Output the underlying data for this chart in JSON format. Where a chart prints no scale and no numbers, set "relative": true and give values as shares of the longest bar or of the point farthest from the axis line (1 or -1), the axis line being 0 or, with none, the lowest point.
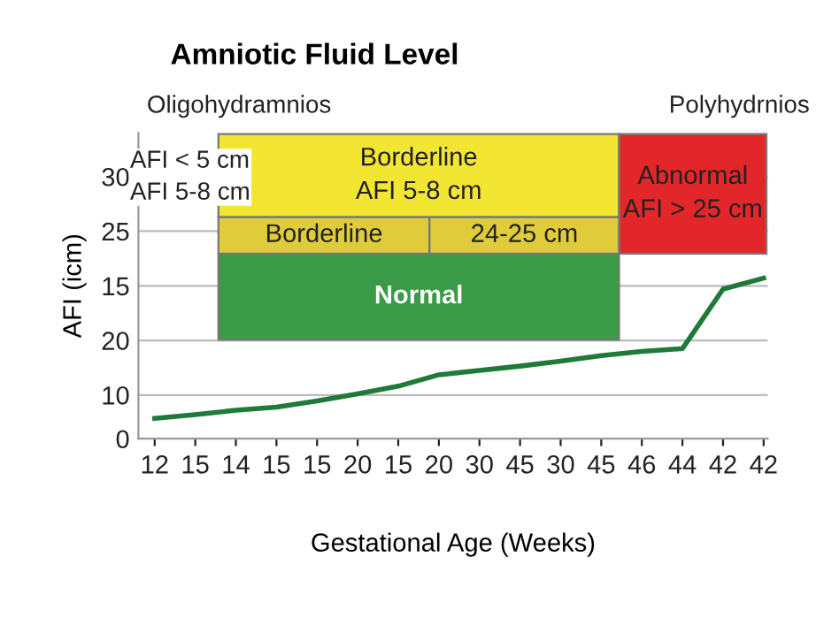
{
  "chart_data": {
    "type": "line",
    "title": "Amniotic Fluid Level",
    "xlabel": "Gestational Age (Weeks)",
    "ylabel": "AFI (icm)",
    "relative": true,
    "categories": [
      "12",
      "15",
      "14",
      "15",
      "15",
      "20",
      "15",
      "20",
      "30",
      "45",
      "30",
      "45",
      "46",
      "44",
      "42",
      "42"
    ],
    "series": [
      {
        "color": "#1f7a3a",
        "values": [
          0.126,
          0.15,
          0.177,
          0.197,
          0.235,
          0.279,
          0.327,
          0.398,
          0.425,
          0.452,
          0.483,
          0.517,
          0.544,
          0.561,
          0.932,
          1
        ]
      }
    ],
    "grid": "y",
    "marker": "none",
    "line_style": "solid",
    "bands": [
      {
        "axis": "y",
        "from": 0.616,
        "to": 1.153,
        "label": "Normal",
        "color": "#3a9a48"
      },
      {
        "axis": "y",
        "from": 1.153,
        "to": 1.381,
        "label": "Borderline",
        "color": "#e0cc3a"
      },
      {
        "axis": "y",
        "from": 1.153,
        "to": 1.381,
        "label": "24-25 cm",
        "color": "#e0cc3a"
      },
      {
        "axis": "y",
        "from": 1.381,
        "to": 1.898,
        "label": "Borderline\nAFI 5-8 cm",
        "color": "#f2e632"
      },
      {
        "axis": "y",
        "from": 1.153,
        "to": 1.898,
        "label": "Abnormal\nAFI > 25 cm",
        "color": "#e3262a"
      }
    ],
    "annotations": [
      "Oligohydramnios",
      "Polyhydrnios",
      "AFI < 5 cm\nAFI 5-8 cm",
      "0",
      "10",
      "20",
      "15",
      "25",
      "30"
    ]
  }
}
